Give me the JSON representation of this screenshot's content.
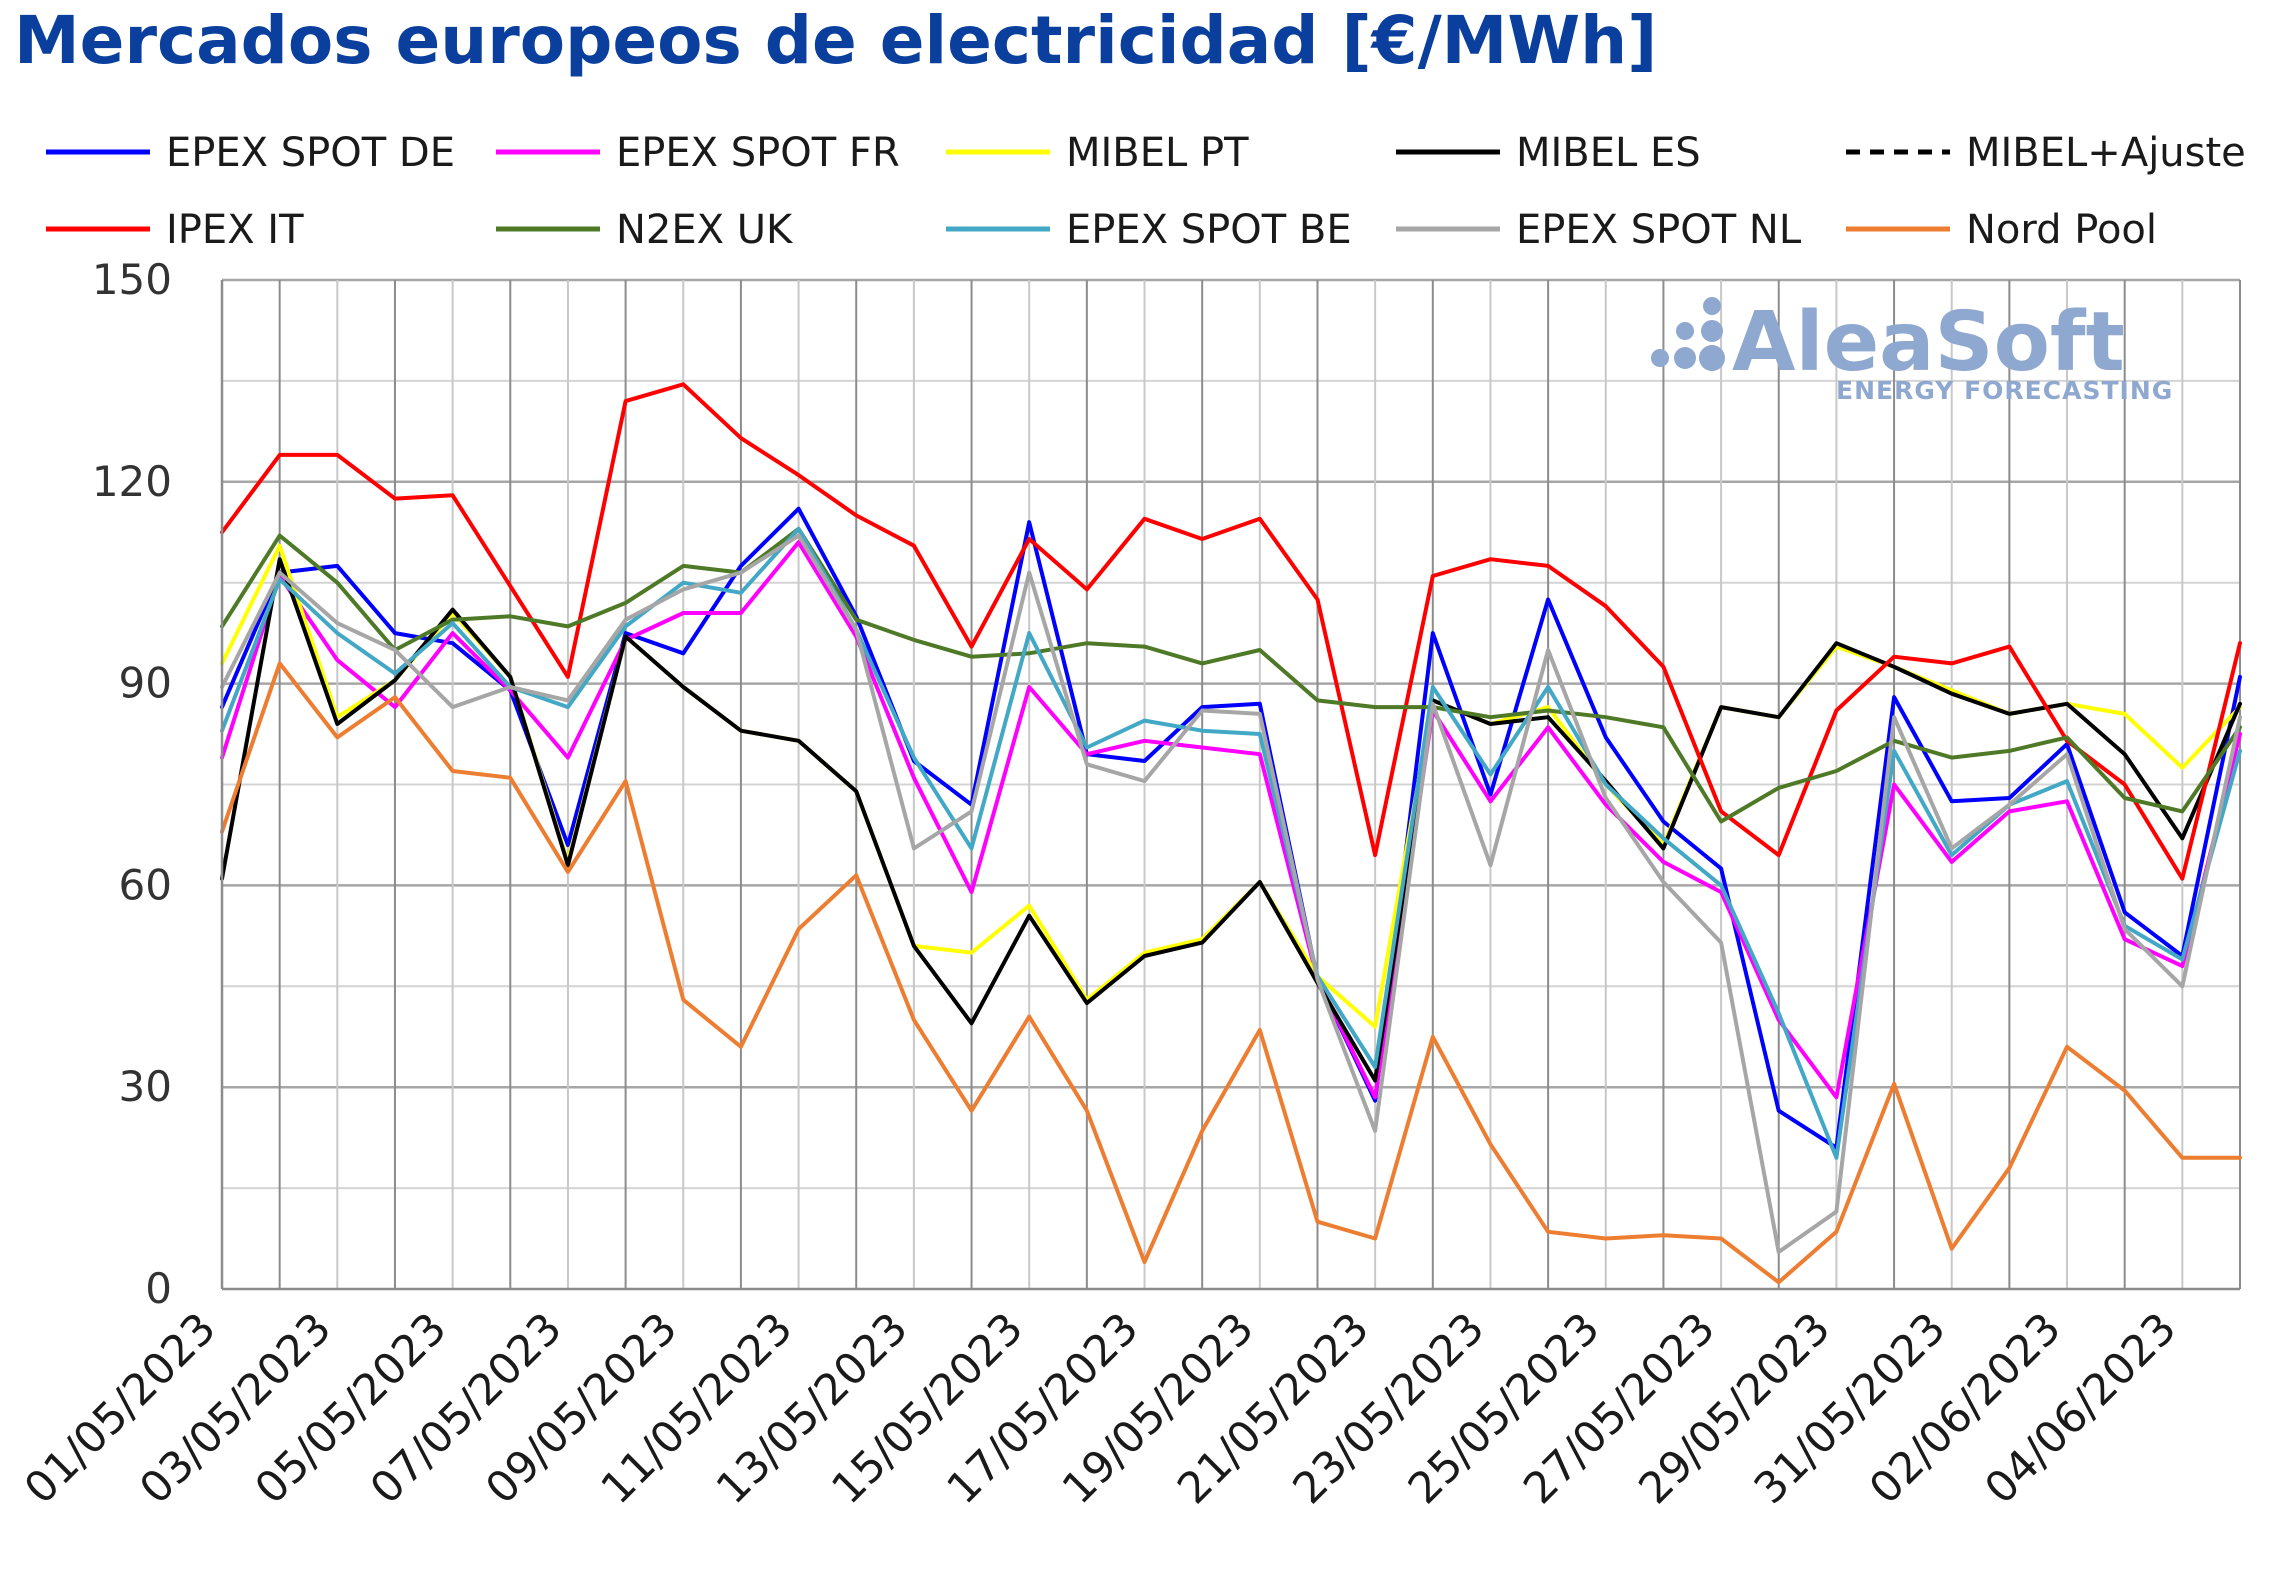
{
  "chart_data": {
    "type": "line",
    "title": "Mercados europeos de electricidad [€/MWh]",
    "xlabel": "",
    "ylabel": "",
    "ylim": [
      0,
      150
    ],
    "yticks": [
      0,
      30,
      60,
      90,
      120,
      150
    ],
    "grid": true,
    "legend": "top",
    "x": [
      "01/05/2023",
      "02/05/2023",
      "03/05/2023",
      "04/05/2023",
      "05/05/2023",
      "06/05/2023",
      "07/05/2023",
      "08/05/2023",
      "09/05/2023",
      "10/05/2023",
      "11/05/2023",
      "12/05/2023",
      "13/05/2023",
      "14/05/2023",
      "15/05/2023",
      "16/05/2023",
      "17/05/2023",
      "18/05/2023",
      "19/05/2023",
      "20/05/2023",
      "21/05/2023",
      "22/05/2023",
      "23/05/2023",
      "24/05/2023",
      "25/05/2023",
      "26/05/2023",
      "27/05/2023",
      "28/05/2023",
      "29/05/2023",
      "30/05/2023",
      "31/05/2023",
      "01/06/2023",
      "02/06/2023",
      "03/06/2023",
      "04/06/2023",
      "05/06/2023"
    ],
    "xtick_labels": [
      "01/05/2023",
      "03/05/2023",
      "05/05/2023",
      "07/05/2023",
      "09/05/2023",
      "11/05/2023",
      "13/05/2023",
      "15/05/2023",
      "17/05/2023",
      "19/05/2023",
      "21/05/2023",
      "23/05/2023",
      "25/05/2023",
      "27/05/2023",
      "29/05/2023",
      "31/05/2023",
      "02/06/2023",
      "04/06/2023"
    ],
    "series": [
      {
        "name": "EPEX SPOT DE",
        "color": "#0000ff",
        "dash": false,
        "values": [
          86.5,
          106.5,
          107.5,
          97.5,
          96,
          89,
          66,
          97.5,
          94.5,
          107.5,
          116,
          100,
          78.5,
          72,
          114,
          79.5,
          78.5,
          86.5,
          87,
          46,
          28,
          97.5,
          73.5,
          102.5,
          82,
          69.5,
          62.5,
          26.5,
          21,
          88,
          72.5,
          73,
          81,
          56,
          49.5,
          91
        ]
      },
      {
        "name": "EPEX SPOT FR",
        "color": "#ff00ff",
        "dash": false,
        "values": [
          79,
          106,
          93.5,
          86.5,
          97.5,
          89,
          79,
          96.5,
          100.5,
          100.5,
          111,
          97,
          76,
          59,
          89.5,
          79.5,
          81.5,
          80.5,
          79.5,
          46,
          28.5,
          86,
          72.5,
          83.5,
          72,
          63.5,
          59,
          40,
          28.5,
          75,
          63.5,
          71,
          72.5,
          52,
          48,
          82.5
        ]
      },
      {
        "name": "MIBEL PT",
        "color": "#ffff00",
        "dash": false,
        "values": [
          93,
          110.5,
          85,
          90.5,
          100.5,
          91,
          63.5,
          97,
          89.5,
          83,
          81.5,
          74,
          51,
          50,
          57,
          43,
          50,
          52,
          60.5,
          46.5,
          39,
          87.5,
          84,
          86.5,
          75,
          66,
          86.5,
          85,
          95.5,
          92.5,
          89,
          85.5,
          87,
          85.5,
          77.5,
          86.5
        ]
      },
      {
        "name": "MIBEL ES",
        "color": "#000000",
        "dash": false,
        "values": [
          61,
          108.5,
          84,
          90.5,
          101,
          91,
          63,
          97,
          89.5,
          83,
          81.5,
          74,
          51,
          39.5,
          55.5,
          42.5,
          49.5,
          51.5,
          60.5,
          45.5,
          31,
          87.5,
          84,
          85,
          75.5,
          65.5,
          86.5,
          85,
          96,
          92.5,
          88.5,
          85.5,
          87,
          79.5,
          67,
          87
        ]
      },
      {
        "name": "MIBEL+Ajuste",
        "color": "#000000",
        "dash": true,
        "values": [
          null,
          null,
          null,
          null,
          null,
          null,
          null,
          null,
          null,
          null,
          null,
          null,
          null,
          null,
          null,
          null,
          null,
          null,
          null,
          null,
          null,
          null,
          null,
          null,
          null,
          null,
          null,
          null,
          null,
          null,
          null,
          null,
          null,
          null,
          null,
          85
        ]
      },
      {
        "name": "IPEX IT",
        "color": "#ff0000",
        "dash": false,
        "values": [
          112.5,
          124,
          124,
          117.5,
          118,
          104.5,
          91,
          132,
          134.5,
          126.5,
          121,
          115,
          110.5,
          95.5,
          111.5,
          104,
          114.5,
          111.5,
          114.5,
          102.5,
          64.5,
          106,
          108.5,
          107.5,
          101.5,
          92.5,
          71,
          64.5,
          86,
          94,
          93,
          95.5,
          81.5,
          75,
          61,
          96
        ]
      },
      {
        "name": "N2EX UK",
        "color": "#4e7a28",
        "dash": false,
        "values": [
          98.5,
          112,
          105,
          95,
          99.5,
          100,
          98.5,
          102,
          107.5,
          106.5,
          113,
          99.5,
          96.5,
          94,
          94.5,
          96,
          95.5,
          93,
          95,
          87.5,
          86.5,
          86.5,
          85,
          86,
          85,
          83.5,
          69.5,
          74.5,
          77,
          81.5,
          79,
          80,
          82,
          73,
          71,
          83.5
        ]
      },
      {
        "name": "EPEX SPOT BE",
        "color": "#42a8c6",
        "dash": false,
        "values": [
          83,
          105.5,
          97.5,
          91.5,
          99,
          89.5,
          86.5,
          98.5,
          105,
          103.5,
          113,
          98,
          79,
          65.5,
          97.5,
          80.5,
          84.5,
          83,
          82.5,
          46.5,
          33,
          89.5,
          76.5,
          89.5,
          75,
          67,
          60,
          41,
          19.5,
          80,
          64.5,
          72,
          75.5,
          54,
          49,
          80
        ]
      },
      {
        "name": "EPEX SPOT NL",
        "color": "#a6a6a6",
        "dash": false,
        "values": [
          89.5,
          106.5,
          99,
          95,
          86.5,
          89.5,
          87.5,
          99.5,
          104,
          106.5,
          112,
          98,
          65.5,
          71,
          106.5,
          78,
          75.5,
          86,
          85.5,
          46,
          23.5,
          87,
          63,
          95,
          73,
          60.5,
          51.5,
          5.5,
          11.5,
          85,
          65.5,
          72,
          79.5,
          53.5,
          45,
          85
        ]
      },
      {
        "name": "Nord Pool",
        "color": "#ed7d31",
        "dash": false,
        "values": [
          68,
          93,
          82,
          88,
          77,
          76,
          62,
          75.5,
          43,
          36,
          53.5,
          61.5,
          40,
          26.5,
          40.5,
          26.5,
          4,
          23.5,
          38.5,
          10,
          7.5,
          37.5,
          21.5,
          8.5,
          7.5,
          8,
          7.5,
          1,
          8.5,
          30.5,
          6,
          18,
          36,
          29.5,
          19.5,
          19.5
        ]
      }
    ]
  },
  "watermark": {
    "brand": "AleaSoft",
    "tagline": "ENERGY FORECASTING"
  }
}
